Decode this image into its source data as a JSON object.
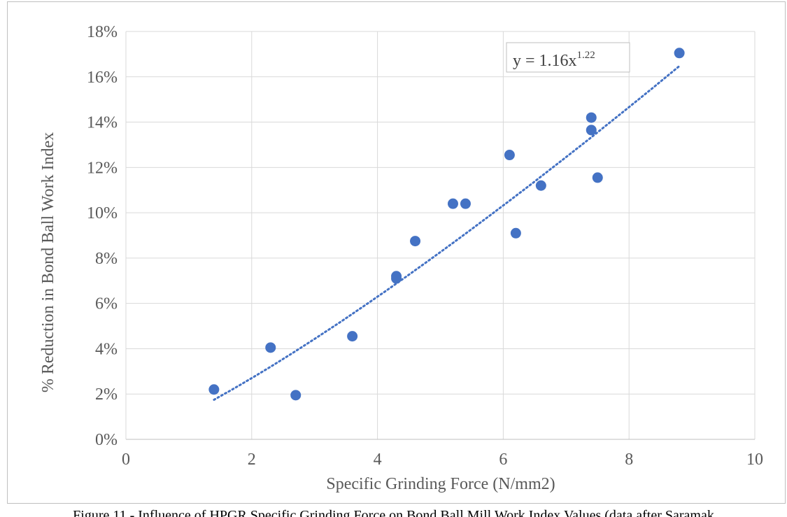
{
  "chart_data": {
    "type": "scatter",
    "xlabel": "Specific Grinding Force (N/mm2)",
    "ylabel": "% Reduction in Bond Ball Work Index",
    "xlim": [
      0,
      10
    ],
    "ylim": [
      0,
      0.18
    ],
    "x_ticks": [
      "0",
      "2",
      "4",
      "6",
      "8",
      "10"
    ],
    "y_ticks": [
      "0%",
      "2%",
      "4%",
      "6%",
      "8%",
      "10%",
      "12%",
      "14%",
      "16%",
      "18%"
    ],
    "grid": true,
    "series": [
      {
        "points": [
          {
            "x": 1.4,
            "y": 0.022
          },
          {
            "x": 2.3,
            "y": 0.0405
          },
          {
            "x": 2.7,
            "y": 0.0195
          },
          {
            "x": 3.6,
            "y": 0.0455
          },
          {
            "x": 4.3,
            "y": 0.072
          },
          {
            "x": 4.3,
            "y": 0.071
          },
          {
            "x": 4.6,
            "y": 0.0875
          },
          {
            "x": 5.2,
            "y": 0.104
          },
          {
            "x": 5.4,
            "y": 0.104
          },
          {
            "x": 6.1,
            "y": 0.1255
          },
          {
            "x": 6.2,
            "y": 0.091
          },
          {
            "x": 6.6,
            "y": 0.112
          },
          {
            "x": 7.4,
            "y": 0.142
          },
          {
            "x": 7.4,
            "y": 0.1365
          },
          {
            "x": 7.5,
            "y": 0.1155
          },
          {
            "x": 8.8,
            "y": 0.1705
          }
        ],
        "color": "#4472c4"
      }
    ],
    "trendline": {
      "kind": "power",
      "coefficient": 1.16,
      "exponent": 1.22,
      "x_range": [
        1.4,
        8.8
      ],
      "label_base": "y = 1.16x",
      "label_exp": "1.22",
      "color": "#4472c4"
    }
  },
  "caption": "Figure 11 - Influence of HPGR Specific Grinding Force on Bond Ball Mill Work Index Values (data after Saramak"
}
